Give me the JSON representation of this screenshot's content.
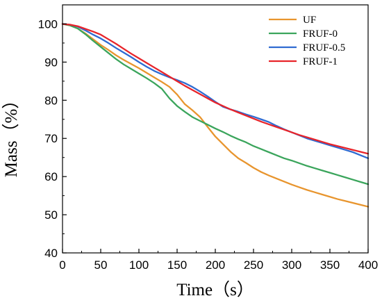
{
  "chart_data": {
    "type": "line",
    "title": "",
    "xlabel": "Time（s）",
    "ylabel": "Mass（%）",
    "xlim": [
      0,
      400
    ],
    "ylim": [
      40,
      105
    ],
    "xticks": [
      0,
      50,
      100,
      150,
      200,
      250,
      300,
      350,
      400
    ],
    "yticks": [
      40,
      50,
      60,
      70,
      80,
      90,
      100
    ],
    "grid": false,
    "legend_position": "top-right",
    "series": [
      {
        "name": "UF",
        "color": "#E8952E",
        "x": [
          0,
          10,
          20,
          30,
          40,
          50,
          60,
          70,
          80,
          90,
          100,
          110,
          120,
          130,
          140,
          150,
          160,
          170,
          180,
          190,
          200,
          210,
          220,
          230,
          240,
          250,
          260,
          270,
          280,
          290,
          300,
          310,
          320,
          330,
          340,
          350,
          360,
          370,
          380,
          390,
          400
        ],
        "values": [
          100,
          99.6,
          98.8,
          97.5,
          96.0,
          94.5,
          93.2,
          91.8,
          90.6,
          89.5,
          88.4,
          87.2,
          86.0,
          84.8,
          83.5,
          81.5,
          79.0,
          77.4,
          75.6,
          73.0,
          70.5,
          68.5,
          66.5,
          64.8,
          63.6,
          62.3,
          61.2,
          60.3,
          59.5,
          58.7,
          57.9,
          57.2,
          56.5,
          55.9,
          55.3,
          54.7,
          54.1,
          53.6,
          53.1,
          52.6,
          52.1
        ]
      },
      {
        "name": "FRUF-0",
        "color": "#3BA55C",
        "x": [
          0,
          10,
          20,
          30,
          40,
          50,
          60,
          70,
          80,
          90,
          100,
          110,
          120,
          130,
          140,
          150,
          160,
          170,
          180,
          190,
          200,
          210,
          220,
          230,
          240,
          250,
          260,
          270,
          280,
          290,
          300,
          310,
          320,
          330,
          340,
          350,
          360,
          370,
          380,
          390,
          400
        ],
        "values": [
          100,
          99.6,
          98.8,
          97.3,
          95.6,
          94.0,
          92.4,
          90.8,
          89.4,
          88.2,
          87.0,
          85.8,
          84.5,
          83.0,
          80.5,
          78.5,
          77.0,
          75.6,
          74.6,
          73.6,
          72.6,
          71.7,
          70.7,
          69.8,
          69.0,
          68.0,
          67.2,
          66.4,
          65.6,
          64.8,
          64.2,
          63.5,
          62.8,
          62.2,
          61.6,
          61.0,
          60.4,
          59.8,
          59.2,
          58.6,
          58.0
        ]
      },
      {
        "name": "FRUF-0.5",
        "color": "#2F6BD1",
        "x": [
          0,
          10,
          20,
          30,
          40,
          50,
          60,
          70,
          80,
          90,
          100,
          110,
          120,
          130,
          140,
          150,
          160,
          170,
          180,
          190,
          200,
          210,
          220,
          230,
          240,
          250,
          260,
          270,
          280,
          290,
          300,
          310,
          320,
          330,
          340,
          350,
          360,
          370,
          380,
          390,
          400
        ],
        "values": [
          100,
          99.8,
          99.3,
          98.3,
          97.2,
          96.2,
          95.0,
          93.7,
          92.5,
          91.3,
          90.0,
          88.8,
          87.7,
          86.8,
          86.0,
          85.3,
          84.5,
          83.5,
          82.3,
          81.0,
          79.6,
          78.3,
          77.6,
          77.0,
          76.3,
          75.7,
          75.0,
          74.3,
          73.3,
          72.4,
          71.6,
          70.8,
          70.0,
          69.4,
          68.8,
          68.2,
          67.6,
          67.0,
          66.4,
          65.6,
          64.8
        ]
      },
      {
        "name": "FRUF-1",
        "color": "#E8242A",
        "x": [
          0,
          10,
          20,
          30,
          40,
          50,
          60,
          70,
          80,
          90,
          100,
          110,
          120,
          130,
          140,
          150,
          160,
          170,
          180,
          190,
          200,
          210,
          220,
          230,
          240,
          250,
          260,
          270,
          280,
          290,
          300,
          310,
          320,
          330,
          340,
          350,
          360,
          370,
          380,
          390,
          400
        ],
        "values": [
          100,
          99.8,
          99.4,
          98.7,
          98.0,
          97.2,
          96.0,
          94.8,
          93.5,
          92.2,
          91.0,
          89.8,
          88.6,
          87.4,
          86.2,
          85.0,
          83.8,
          82.7,
          81.6,
          80.5,
          79.4,
          78.5,
          77.6,
          76.8,
          76.0,
          75.2,
          74.4,
          73.7,
          73.0,
          72.3,
          71.6,
          70.9,
          70.3,
          69.7,
          69.1,
          68.5,
          68.0,
          67.5,
          67.0,
          66.5,
          66.0
        ]
      }
    ]
  }
}
